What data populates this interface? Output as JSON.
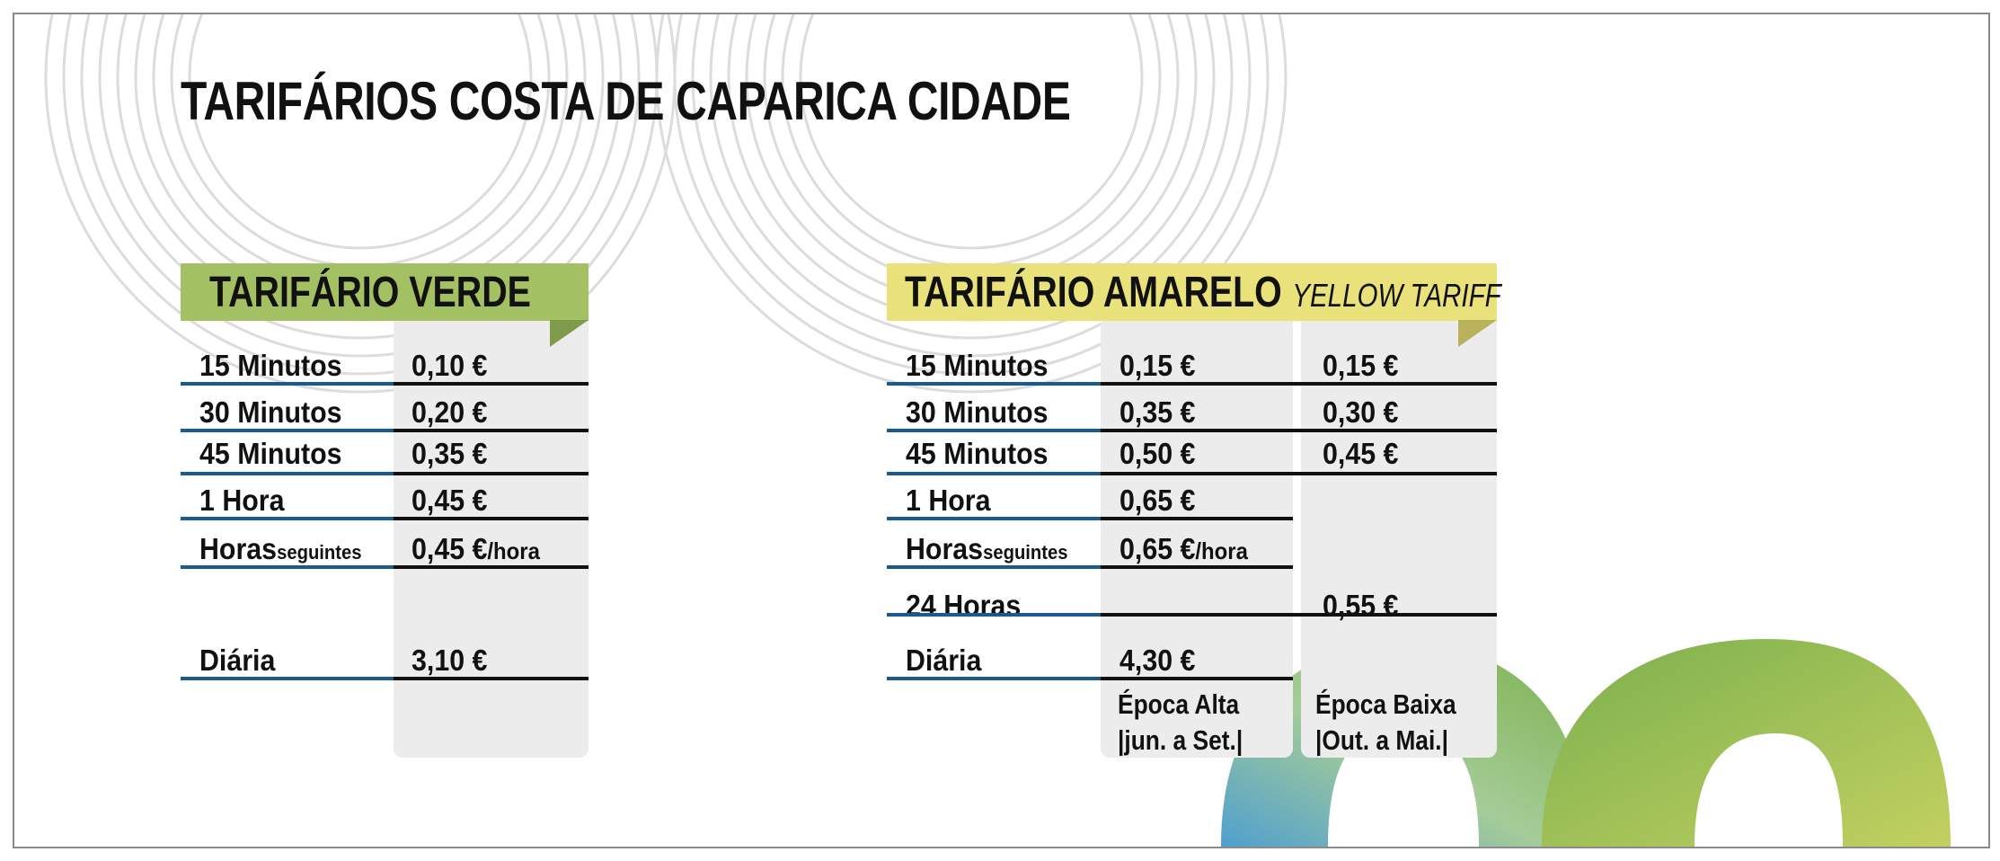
{
  "title": "TARIFÁRIOS COSTA DE CAPARICA CIDADE",
  "colors": {
    "green_header": "#a3c062",
    "yellow_header": "#e9e27a",
    "row_blue": "#1a5a8f",
    "column_gray": "#ececec"
  },
  "verde": {
    "header": "TARIFÁRIO VERDE",
    "rows": [
      {
        "label": "15 Minutos",
        "value": "0,10 €"
      },
      {
        "label": "30 Minutos",
        "value": "0,20 €"
      },
      {
        "label": "45 Minutos",
        "value": "0,35 €"
      },
      {
        "label": "1 Hora",
        "value": "0,45 €"
      },
      {
        "label": "Horas",
        "label_small": "seguintes",
        "value": "0,45 €",
        "value_small": "/hora"
      },
      {
        "label": "Diária",
        "value": "3,10 €"
      }
    ]
  },
  "amarelo": {
    "header": "TARIFÁRIO AMARELO",
    "header_sub": "YELLOW TARIFF",
    "rows": [
      {
        "label": "15 Minutos",
        "alta": "0,15 €",
        "baixa": "0,15 €"
      },
      {
        "label": "30 Minutos",
        "alta": "0,35 €",
        "baixa": "0,30 €"
      },
      {
        "label": "45 Minutos",
        "alta": "0,50 €",
        "baixa": "0,45 €"
      },
      {
        "label": "1 Hora",
        "alta": "0,65 €"
      },
      {
        "label": "Horas",
        "label_small": "seguintes",
        "alta": "0,65 €",
        "alta_small": "/hora"
      },
      {
        "label": "24 Horas",
        "baixa": "0,55 €"
      },
      {
        "label": "Diária",
        "alta": "4,30 €"
      }
    ],
    "alta_note": [
      "Época Alta",
      "|jun. a Set.|"
    ],
    "baixa_note": [
      "Época Baixa",
      "|Out. a Mai.|"
    ]
  }
}
